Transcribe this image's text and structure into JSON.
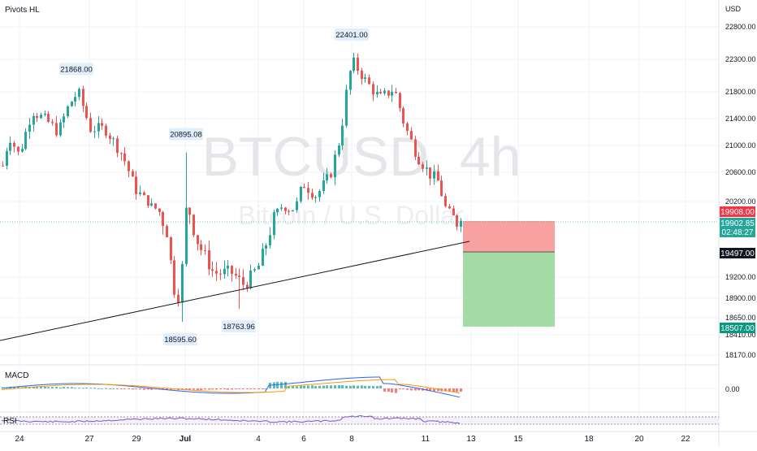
{
  "indicators": {
    "pivots": "Pivots HL",
    "macd": "MACD",
    "rsi": "RSI"
  },
  "watermark": {
    "symbol": "BTCUSD, 4h",
    "name": "Bitcoin / U.S. Dollar"
  },
  "currency": "USD",
  "colors": {
    "up": "#26a69a",
    "down": "#ef5350",
    "stop": "#f7a1a1",
    "target": "#a5dca5",
    "macd": "#2962ff",
    "signal": "#ff9800",
    "rsi": "#7e57c2",
    "grid": "#f0f3fa"
  },
  "chart_data": {
    "type": "candlestick",
    "y_axis": {
      "ticks": [
        22800.0,
        22300.0,
        21800.0,
        21400.0,
        21000.0,
        20600.0,
        20200.0,
        19200.0,
        18900.0,
        18650.0,
        18410.0,
        18170.0
      ],
      "tick_labels": [
        "22800.00",
        "22300.00",
        "21800.00",
        "21400.00",
        "21000.00",
        "20600.00",
        "20200.00",
        "19200.00",
        "18900.00",
        "18650.00",
        "18410.00",
        "18170.00"
      ]
    },
    "x_axis": {
      "labels": [
        "24",
        "27",
        "29",
        "Jul",
        "4",
        "6",
        "8",
        "11",
        "13",
        "15",
        "18",
        "20",
        "22"
      ]
    },
    "price_tags": {
      "stop": "19908.00",
      "current": "19902.85",
      "countdown": "02:48:27",
      "entry": "19497.00",
      "target": "18507.00"
    },
    "pivots": [
      {
        "label": "21868.00",
        "kind": "high",
        "price": 21868
      },
      {
        "label": "20895.08",
        "kind": "high",
        "price": 20895
      },
      {
        "label": "22401.00",
        "kind": "high",
        "price": 22401
      },
      {
        "label": "18595.60",
        "kind": "low",
        "price": 18595
      },
      {
        "label": "18763.96",
        "kind": "low",
        "price": 18763
      }
    ],
    "position": {
      "entry": 19497,
      "stop": 19908,
      "target": 18507
    },
    "macd": {
      "tick_label": "0.00"
    }
  }
}
